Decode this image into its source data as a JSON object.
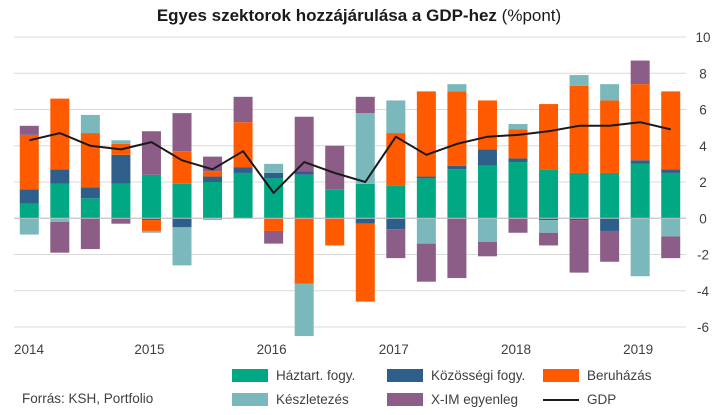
{
  "title_main": "Egyes szektorok hozzájárulása a GDP-hez",
  "title_unit": " (%pont)",
  "source": "Forrás: KSH, Portfolio",
  "colors": {
    "haztart": "#00A883",
    "kozossegi": "#2E5F8A",
    "beruhazas": "#FF5A00",
    "keszlet": "#7BB8BC",
    "ximgl": "#8C5D86",
    "gdp": "#1A1A1A",
    "grid": "#D9D9D9"
  },
  "chart_data": {
    "type": "bar",
    "stacked": true,
    "title": "Egyes szektorok hozzájárulása a GDP-hez (%pont)",
    "x_year_labels": [
      "2014",
      "2015",
      "2016",
      "2017",
      "2018",
      "2019"
    ],
    "y_ticks": [
      "-6",
      "-4",
      "-2",
      "0",
      "2",
      "4",
      "6",
      "8",
      "10"
    ],
    "ylim": [
      -6,
      10
    ],
    "y_axis_position": "right",
    "grid": true,
    "legend_position": "bottom",
    "quarters": [
      "2014Q1",
      "2014Q2",
      "2014Q3",
      "2014Q4",
      "2015Q1",
      "2015Q2",
      "2015Q3",
      "2015Q4",
      "2016Q1",
      "2016Q2",
      "2016Q3",
      "2016Q4",
      "2017Q1",
      "2017Q2",
      "2017Q3",
      "2017Q4",
      "2018Q1",
      "2018Q2",
      "2018Q3",
      "2018Q4",
      "2019Q1",
      "2019Q2"
    ],
    "series": [
      {
        "name": "Háztart. fogy.",
        "key": "haztart",
        "values": [
          0.8,
          1.9,
          1.1,
          1.9,
          2.4,
          1.9,
          2.0,
          2.5,
          2.2,
          2.4,
          1.6,
          1.9,
          1.8,
          2.2,
          2.7,
          2.9,
          3.1,
          2.7,
          2.5,
          2.5,
          3.0,
          2.5
        ]
      },
      {
        "name": "Közösségi fogy.",
        "key": "kozossegi",
        "values": [
          0.8,
          0.8,
          0.6,
          1.6,
          -0.1,
          -0.5,
          0.3,
          0.3,
          0.3,
          0.2,
          0.0,
          -0.3,
          -0.6,
          0.1,
          0.2,
          0.9,
          0.2,
          -0.1,
          -0.1,
          -0.7,
          0.2,
          0.2
        ]
      },
      {
        "name": "Beruházás",
        "key": "beruhazas",
        "values": [
          3.0,
          3.9,
          3.0,
          0.6,
          -0.6,
          1.8,
          0.3,
          2.5,
          -0.7,
          -3.6,
          -1.5,
          -4.3,
          2.9,
          4.7,
          4.1,
          2.7,
          1.6,
          3.6,
          4.8,
          4.0,
          4.2,
          4.3
        ]
      },
      {
        "name": "Készletezés",
        "key": "keszlet",
        "values": [
          -0.9,
          -0.2,
          1.0,
          0.2,
          -0.1,
          -2.1,
          -0.1,
          0.0,
          0.5,
          -2.9,
          0.0,
          3.9,
          1.8,
          -1.4,
          0.4,
          -1.3,
          0.3,
          -0.7,
          0.6,
          0.9,
          -3.2,
          -1.0
        ]
      },
      {
        "name": "X-IM egyenleg",
        "key": "ximgl",
        "values": [
          0.5,
          -1.7,
          -1.7,
          -0.3,
          2.4,
          2.1,
          0.8,
          1.4,
          -0.7,
          3.0,
          2.4,
          0.9,
          -1.6,
          -2.1,
          -3.3,
          -0.8,
          -0.8,
          -0.7,
          -2.9,
          -1.7,
          1.3,
          -1.2
        ]
      },
      {
        "name": "GDP",
        "key": "gdp",
        "type": "line",
        "values": [
          4.3,
          4.7,
          4.0,
          3.8,
          4.2,
          3.2,
          2.7,
          3.7,
          1.4,
          3.1,
          2.5,
          2.0,
          4.5,
          3.5,
          4.1,
          4.5,
          4.6,
          4.8,
          5.1,
          5.1,
          5.3,
          4.9
        ]
      }
    ]
  }
}
